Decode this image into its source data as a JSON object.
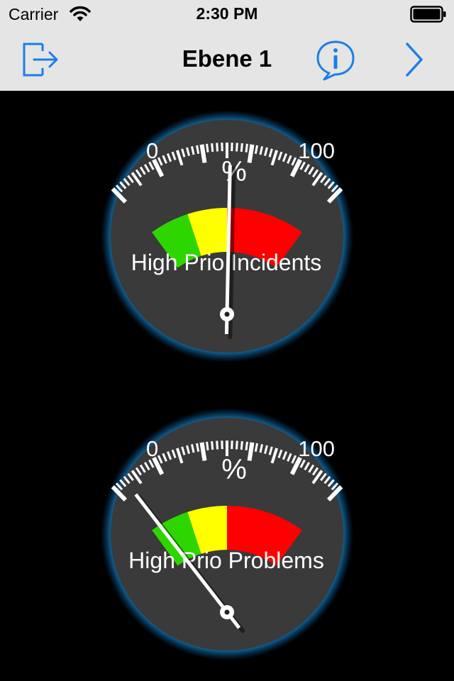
{
  "status_bar": {
    "carrier": "Carrier",
    "time": "2:30 PM"
  },
  "nav_bar": {
    "title": "Ebene 1",
    "left_icon": "logout-icon",
    "info_icon": "info-bubble-icon",
    "right_icon": "chevron-right-icon"
  },
  "colors": {
    "bar_background": "#e5e5e5",
    "accent": "#1a7fe8",
    "gauge_face": "#3a3a3a",
    "gauge_glow": "#1fb6ff",
    "zone_green": "#2ed600",
    "zone_yellow": "#ffff00",
    "zone_red": "#ff0000"
  },
  "gauges": [
    {
      "label": "High Prio Incidents",
      "unit": "%",
      "min_label": "0",
      "max_label": "100",
      "min": 0,
      "max": 100,
      "value": 51,
      "zones": [
        {
          "from": 10,
          "to": 30,
          "color": "#2ed600"
        },
        {
          "from": 30,
          "to": 50,
          "color": "#ffff00"
        },
        {
          "from": 50,
          "to": 90,
          "color": "#ff0000"
        }
      ]
    },
    {
      "label": "High Prio Problems",
      "unit": "%",
      "min_label": "0",
      "max_label": "100",
      "min": 0,
      "max": 100,
      "value": 18,
      "zones": [
        {
          "from": 10,
          "to": 30,
          "color": "#2ed600"
        },
        {
          "from": 30,
          "to": 50,
          "color": "#ffff00"
        },
        {
          "from": 50,
          "to": 90,
          "color": "#ff0000"
        }
      ]
    }
  ]
}
